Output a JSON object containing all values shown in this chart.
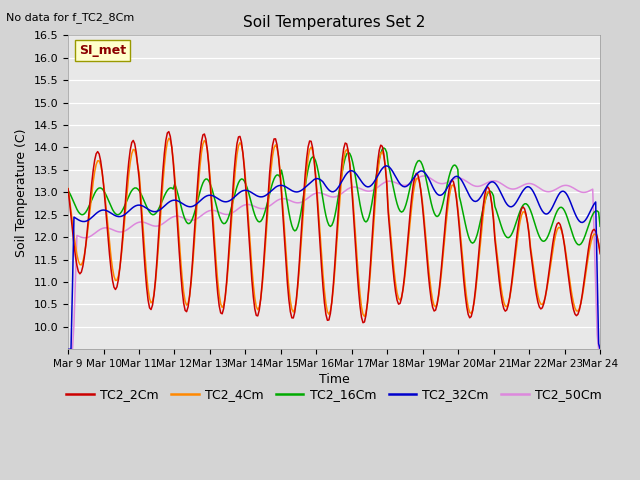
{
  "title": "Soil Temperatures Set 2",
  "no_data_label": "No data for f_TC2_8Cm",
  "ylabel": "Soil Temperature (C)",
  "xlabel": "Time",
  "si_met_label": "SI_met",
  "ylim": [
    9.5,
    16.5
  ],
  "yticks": [
    10.0,
    10.5,
    11.0,
    11.5,
    12.0,
    12.5,
    13.0,
    13.5,
    14.0,
    14.5,
    15.0,
    15.5,
    16.0,
    16.5
  ],
  "x_tick_labels": [
    "Mar 9",
    "Mar 10",
    "Mar 11",
    "Mar 12",
    "Mar 13",
    "Mar 14",
    "Mar 15",
    "Mar 16",
    "Mar 17",
    "Mar 18",
    "Mar 19",
    "Mar 20",
    "Mar 21",
    "Mar 22",
    "Mar 23",
    "Mar 24"
  ],
  "series_colors": {
    "TC2_2Cm": "#cc0000",
    "TC2_4Cm": "#ff8800",
    "TC2_16Cm": "#00aa00",
    "TC2_32Cm": "#0000cc",
    "TC2_50Cm": "#dd88dd"
  },
  "background_color": "#e8e8e8",
  "fig_bg_color": "#d4d4d4",
  "grid_color": "#ffffff",
  "legend_entries": [
    "TC2_2Cm",
    "TC2_4Cm",
    "TC2_16Cm",
    "TC2_32Cm",
    "TC2_50Cm"
  ]
}
